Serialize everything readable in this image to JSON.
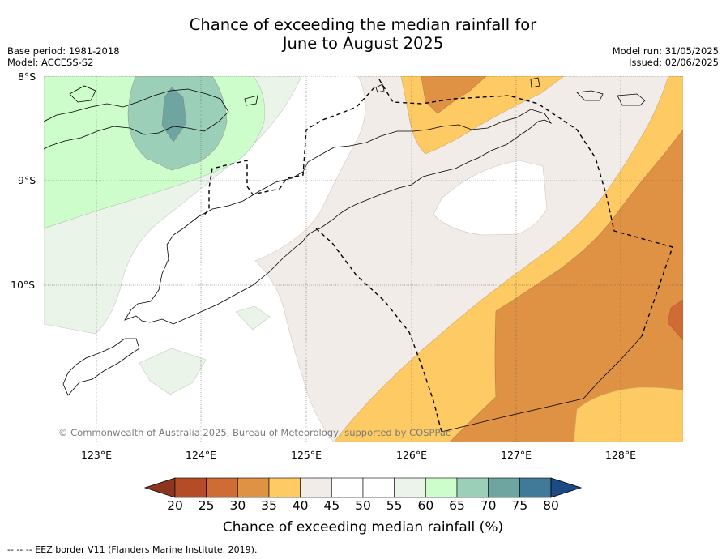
{
  "title_line1": "Chance of exceeding the median rainfall for",
  "title_line2": "June to August 2025",
  "meta_left": {
    "base_period": "Base period: 1981-2018",
    "model": "Model: ACCESS-S2"
  },
  "meta_right": {
    "model_run": "Model run: 31/05/2025",
    "issued": "Issued: 02/06/2025"
  },
  "map": {
    "lat_labels": [
      "8°S",
      "9°S",
      "10°S"
    ],
    "lon_labels": [
      "123°E",
      "124°E",
      "125°E",
      "126°E",
      "127°E",
      "128°E"
    ],
    "copyright": "© Commonwealth of Australia 2025, Bureau of Meteorology, supported by COSPPac"
  },
  "colorbar": {
    "ticks": [
      "20",
      "25",
      "30",
      "35",
      "40",
      "45",
      "50",
      "55",
      "60",
      "65",
      "70",
      "75",
      "80"
    ],
    "colors": [
      "#8c3520",
      "#b44c27",
      "#cf6c35",
      "#e09244",
      "#fdca64",
      "#f2ece8",
      "#ffffff",
      "#ffffff",
      "#eaf4e8",
      "#ccfdca",
      "#9ccfb8",
      "#6ea5a0",
      "#3f7a99",
      "#1c4a84"
    ],
    "label": "Chance of exceeding median rainfall (%)"
  },
  "footnote": "--  --  -- EEZ border V11 (Flanders Marine Institute, 2019)."
}
